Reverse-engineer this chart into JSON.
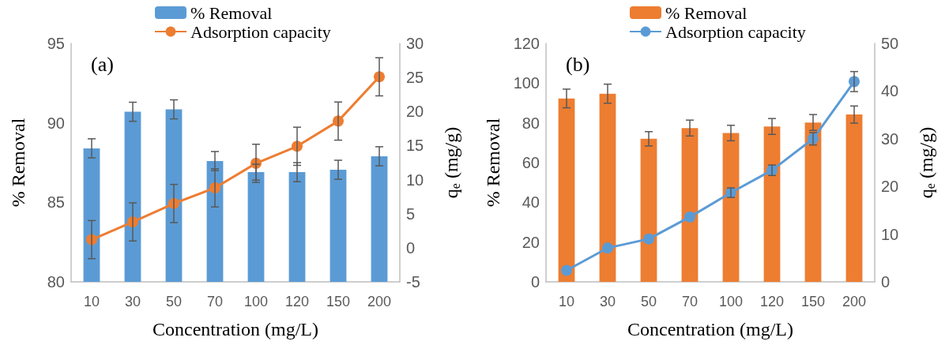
{
  "chart_data": [
    {
      "type": "bar",
      "annotations": [
        "(a)"
      ],
      "xlabel": "Concentration (mg/L)",
      "ylabel": "% Removal",
      "y2label": "q$_{e}$ (mg/g)",
      "categories": [
        "10",
        "30",
        "50",
        "70",
        "100",
        "120",
        "150",
        "200"
      ],
      "series": [
        {
          "name": "% Removal",
          "color": "#5b9bd5",
          "values": [
            88.4,
            90.7,
            90.85,
            87.6,
            86.9,
            86.9,
            87.05,
            87.9
          ],
          "errors": [
            0.6,
            0.6,
            0.6,
            0.6,
            0.5,
            0.6,
            0.6,
            0.6
          ]
        },
        {
          "name": "Adsorption capacity",
          "type": "line",
          "axis": "y2",
          "color": "#ed7d31",
          "marker": "circle",
          "values": [
            1.2,
            3.8,
            6.5,
            8.8,
            12.4,
            14.9,
            18.6,
            25.1
          ],
          "errors": [
            2.8,
            2.8,
            2.8,
            2.8,
            2.8,
            2.8,
            2.8,
            2.8
          ]
        }
      ],
      "ylim": [
        80,
        95
      ],
      "yticks": [
        80,
        85,
        90,
        95
      ],
      "y2lim": [
        -5,
        30
      ],
      "y2ticks": [
        -5,
        0,
        5,
        10,
        15,
        20,
        25,
        30
      ],
      "legend": "top",
      "grid": false
    },
    {
      "type": "bar",
      "annotations": [
        "(b)"
      ],
      "xlabel": "Concentration (mg/L)",
      "ylabel": "% Removal",
      "y2label": "q$_{e}$ (mg/g)",
      "categories": [
        "10",
        "30",
        "50",
        "70",
        "100",
        "120",
        "150",
        "200"
      ],
      "series": [
        {
          "name": "% Removal",
          "color": "#ed7d31",
          "values": [
            92.3,
            94.7,
            72.0,
            77.4,
            74.9,
            78.2,
            80.2,
            84.2
          ],
          "errors": [
            4.7,
            4.8,
            3.6,
            4,
            3.9,
            4,
            4,
            4.3
          ]
        },
        {
          "name": "Adsorption capacity",
          "type": "line",
          "axis": "y2",
          "color": "#5b9bd5",
          "marker": "circle",
          "values": [
            2.4,
            7.1,
            9.0,
            13.6,
            18.7,
            23.4,
            30.0,
            42.0
          ],
          "errors": [
            null,
            null,
            null,
            null,
            1,
            1.1,
            1.3,
            2.1
          ]
        }
      ],
      "ylim": [
        0,
        120
      ],
      "yticks": [
        0,
        20,
        40,
        60,
        80,
        100,
        120
      ],
      "y2lim": [
        0,
        50
      ],
      "y2ticks": [
        0,
        10,
        20,
        30,
        40,
        50
      ],
      "legend": "top",
      "grid": false
    }
  ]
}
